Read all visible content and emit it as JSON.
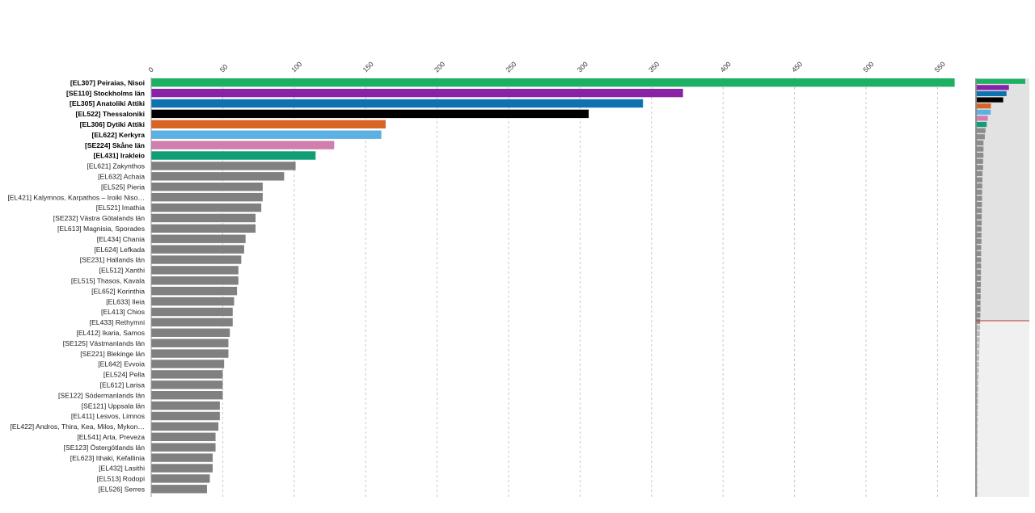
{
  "chart_data": {
    "type": "bar",
    "orientation": "horizontal",
    "title": "",
    "xlabel": "",
    "ylabel": "",
    "xlim": [
      0,
      575
    ],
    "xticks": [
      "0",
      "50",
      "100",
      "150",
      "200",
      "250",
      "300",
      "350",
      "400",
      "450",
      "500",
      "550"
    ],
    "grid": true,
    "highlight_count": 8,
    "default_color": "#808080",
    "colors": [
      "#1db063",
      "#8a22a8",
      "#0d72b0",
      "#000000",
      "#da6424",
      "#5cb1e3",
      "#cf7ead",
      "#109e76"
    ],
    "categories": [
      "[EL307] Peiraias, Nisoi",
      "[SE110] Stockholms län",
      "[EL305] Anatoliki Attiki",
      "[EL522] Thessaloniki",
      "[EL306] Dytiki Attiki",
      "[EL622] Kerkyra",
      "[SE224] Skåne län",
      "[EL431] Irakleio",
      "[EL621] Zakynthos",
      "[EL632] Achaia",
      "[EL525] Pieria",
      "[EL421] Kalymnos, Karpathos – Iroiki Niso…",
      "[EL521] Imathia",
      "[SE232] Västra Götalands län",
      "[EL613] Magnisia, Sporades",
      "[EL434] Chania",
      "[EL624] Lefkada",
      "[SE231] Hallands län",
      "[EL512] Xanthi",
      "[EL515] Thasos, Kavala",
      "[EL652] Korinthia",
      "[EL633] Ileia",
      "[EL413] Chios",
      "[EL433] Rethymni",
      "[EL412] Ikaria, Samos",
      "[SE125] Västmanlands län",
      "[SE221] Blekinge län",
      "[EL642] Evvoia",
      "[EL524] Pella",
      "[EL612] Larisa",
      "[SE122] Södermanlands län",
      "[SE121] Uppsala län",
      "[EL411] Lesvos, Limnos",
      "[EL422] Andros, Thira, Kea, Milos, Mykon…",
      "[EL541] Arta, Preveza",
      "[SE123] Östergötlands län",
      "[EL623] Ithaki, Kefallinia",
      "[EL432] Lasithi",
      "[EL513] Rodopi",
      "[EL526] Serres"
    ],
    "values": [
      562,
      372,
      344,
      306,
      164,
      161,
      128,
      115,
      101,
      93,
      78,
      78,
      77,
      73,
      73,
      66,
      65,
      63,
      61,
      61,
      60,
      58,
      57,
      57,
      55,
      54,
      54,
      51,
      50,
      50,
      50,
      48,
      48,
      47,
      45,
      45,
      43,
      43,
      41,
      39
    ],
    "overview_values": [
      562,
      372,
      344,
      306,
      164,
      161,
      128,
      115,
      101,
      93,
      78,
      78,
      77,
      73,
      73,
      66,
      65,
      63,
      61,
      61,
      60,
      58,
      57,
      57,
      55,
      54,
      54,
      51,
      50,
      50,
      50,
      48,
      48,
      47,
      45,
      45,
      43,
      43,
      41,
      39,
      37,
      35,
      33,
      31,
      29,
      27,
      25,
      23,
      21,
      19,
      18,
      17,
      16,
      15,
      14,
      13,
      12,
      11,
      10,
      9,
      8,
      7,
      6,
      5,
      4,
      3,
      2,
      1
    ]
  }
}
